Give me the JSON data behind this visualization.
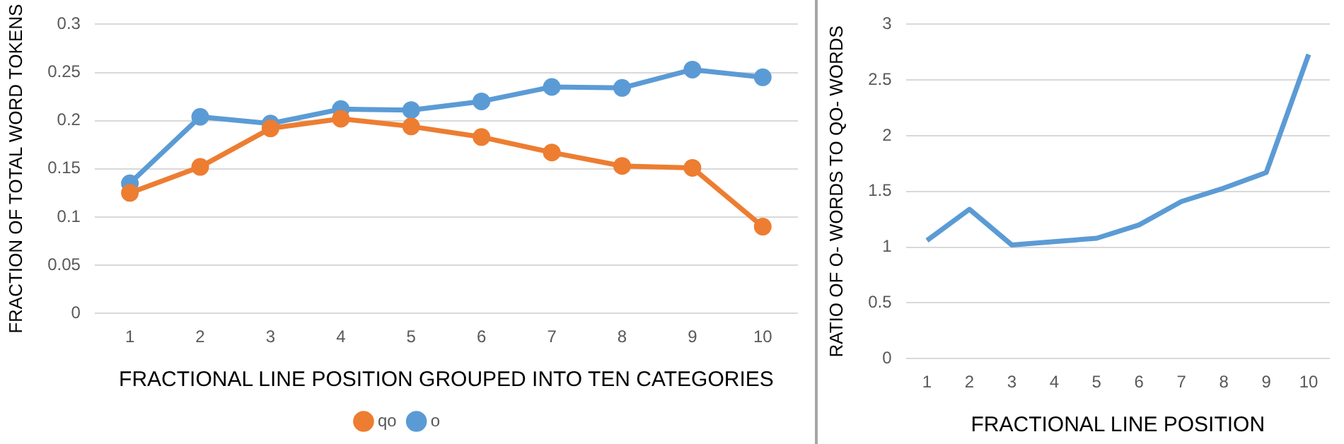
{
  "chart_data": [
    {
      "type": "line",
      "xlabel": "FRACTIONAL LINE POSITION GROUPED INTO TEN CATEGORIES",
      "ylabel": "FRACTION OF TOTAL WORD TOKENS",
      "categories": [
        "1",
        "2",
        "3",
        "4",
        "5",
        "6",
        "7",
        "8",
        "9",
        "10"
      ],
      "series": [
        {
          "name": "o",
          "color": "#5b9bd5",
          "values": [
            0.135,
            0.204,
            0.197,
            0.212,
            0.211,
            0.22,
            0.235,
            0.234,
            0.253,
            0.245
          ]
        },
        {
          "name": "qo",
          "color": "#ed7d31",
          "values": [
            0.125,
            0.152,
            0.192,
            0.202,
            0.194,
            0.183,
            0.167,
            0.153,
            0.151,
            0.09
          ]
        }
      ],
      "ylim": [
        0,
        0.3
      ],
      "yticks": [
        0,
        0.05,
        0.1,
        0.15,
        0.2,
        0.25,
        0.3
      ],
      "grid": "y",
      "legend": "bottom",
      "marker": "circle"
    },
    {
      "type": "line",
      "xlabel": "FRACTIONAL LINE POSITION",
      "ylabel": "RATIO OF O- WORDS TO QO- WORDS",
      "categories": [
        "1",
        "2",
        "3",
        "4",
        "5",
        "6",
        "7",
        "8",
        "9",
        "10"
      ],
      "series": [
        {
          "color": "#5b9bd5",
          "values": [
            1.06,
            1.34,
            1.02,
            1.05,
            1.08,
            1.2,
            1.41,
            1.53,
            1.67,
            2.73
          ]
        }
      ],
      "ylim": [
        0,
        3
      ],
      "yticks": [
        0,
        0.5,
        1,
        1.5,
        2,
        2.5,
        3
      ],
      "grid": "y",
      "marker": "none"
    }
  ]
}
